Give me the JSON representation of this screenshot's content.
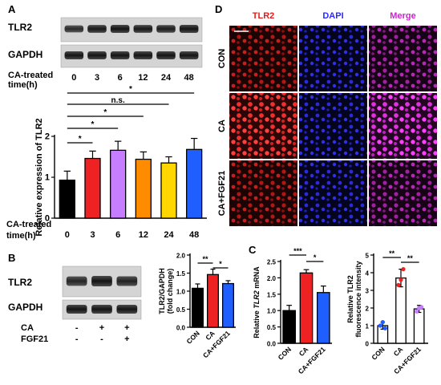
{
  "panel_labels": {
    "a": "A",
    "b": "B",
    "c": "C",
    "d": "D"
  },
  "blot_a": {
    "rows": [
      "TLR2",
      "GAPDH"
    ],
    "treatment_label_line1": "CA-treated",
    "treatment_label_line2": "time(h)",
    "timepoints": [
      "0",
      "3",
      "6",
      "12",
      "24",
      "48"
    ]
  },
  "blot_b": {
    "rows": [
      "TLR2",
      "GAPDH"
    ],
    "conditions": [
      {
        "name": "CA",
        "marks": [
          "-",
          "+",
          "+"
        ]
      },
      {
        "name": "FGF21",
        "marks": [
          "-",
          "-",
          "+"
        ]
      }
    ]
  },
  "significance": {
    "star1": "*",
    "star2": "**",
    "star3": "***",
    "ns": "n.s."
  },
  "micro": {
    "channels": [
      "TLR2",
      "DAPI",
      "Merge"
    ],
    "channel_colors": [
      "#e02020",
      "#2a2aff",
      "#d020d0"
    ],
    "rows": [
      "CON",
      "CA",
      "CA+FGF21"
    ],
    "intensity_tint": [
      "dim",
      "bright",
      "dim"
    ]
  },
  "colors": {
    "black": "#000000",
    "red": "#ee2222",
    "purple": "#c77dff",
    "orange": "#ff8c00",
    "yellow": "#ffd700",
    "blue": "#1f5fff"
  },
  "chart_data": [
    {
      "id": "a_bar",
      "type": "bar",
      "categories": [
        "0",
        "3",
        "6",
        "12",
        "24",
        "48"
      ],
      "values": [
        0.93,
        1.46,
        1.66,
        1.44,
        1.35,
        1.68
      ],
      "errors": [
        0.22,
        0.18,
        0.22,
        0.18,
        0.15,
        0.27
      ],
      "colors": [
        "#000000",
        "#ee2222",
        "#c77dff",
        "#ff8c00",
        "#ffd700",
        "#1f5fff"
      ],
      "ylabel": "Relative expression of TLR2",
      "xlabel_line1": "CA-treated",
      "xlabel_line2": "time(h)",
      "ylim": [
        0,
        2
      ],
      "yticks": [
        "0",
        "1",
        "2"
      ],
      "comparisons": [
        {
          "from": "0",
          "to": "3",
          "label": "*"
        },
        {
          "from": "0",
          "to": "6",
          "label": "*"
        },
        {
          "from": "0",
          "to": "12",
          "label": "*"
        },
        {
          "from": "0",
          "to": "24",
          "label": "n.s."
        },
        {
          "from": "0",
          "to": "48",
          "label": "*"
        }
      ]
    },
    {
      "id": "b_bar",
      "type": "bar",
      "categories": [
        "CON",
        "CA",
        "CA+FGF21"
      ],
      "values": [
        1.08,
        1.46,
        1.21
      ],
      "errors": [
        0.12,
        0.15,
        0.08
      ],
      "colors": [
        "#000000",
        "#ee2222",
        "#1f5fff"
      ],
      "ylabel": "TLR2/GAPDH\n(fold change)",
      "ylim": [
        0,
        2
      ],
      "yticks": [
        "0.0",
        "0.5",
        "1.0",
        "1.5",
        "2.0"
      ],
      "comparisons": [
        {
          "from": "CON",
          "to": "CA",
          "label": "**"
        },
        {
          "from": "CA",
          "to": "CA+FGF21",
          "label": "*"
        }
      ]
    },
    {
      "id": "c_mrna",
      "type": "bar",
      "categories": [
        "CON",
        "CA",
        "CA+FGF21"
      ],
      "values": [
        1.0,
        2.15,
        1.55
      ],
      "errors": [
        0.16,
        0.1,
        0.2
      ],
      "colors": [
        "#000000",
        "#ee2222",
        "#1f5fff"
      ],
      "ylabel_prefix": "Relative ",
      "ylabel_italic": "TLR2",
      "ylabel_suffix": " mRNA",
      "ylim": [
        0,
        2.5
      ],
      "yticks": [
        "0.0",
        "0.5",
        "1.0",
        "1.5",
        "2.0",
        "2.5"
      ],
      "comparisons": [
        {
          "from": "CON",
          "to": "CA",
          "label": "***"
        },
        {
          "from": "CA",
          "to": "CA+FGF21",
          "label": "*"
        }
      ]
    },
    {
      "id": "c_fluor",
      "type": "bar",
      "categories": [
        "CON",
        "CA",
        "CA+FGF21"
      ],
      "values": [
        1.0,
        3.7,
        1.95
      ],
      "errors": [
        0.2,
        0.5,
        0.2
      ],
      "colors": [
        "#1f5fff",
        "#ee2222",
        "#c77dff"
      ],
      "hollow": true,
      "points": [
        [
          1.0,
          1.2,
          0.85
        ],
        [
          3.3,
          3.6,
          4.2
        ],
        [
          1.8,
          2.0,
          2.05
        ]
      ],
      "ylabel_line1": "Relative TLR2",
      "ylabel_line2": "fluorescence intensity",
      "ylim": [
        0,
        5
      ],
      "yticks": [
        "0",
        "1",
        "2",
        "3",
        "4",
        "5"
      ],
      "comparisons": [
        {
          "from": "CON",
          "to": "CA",
          "label": "**"
        },
        {
          "from": "CA",
          "to": "CA+FGF21",
          "label": "**"
        }
      ]
    }
  ]
}
